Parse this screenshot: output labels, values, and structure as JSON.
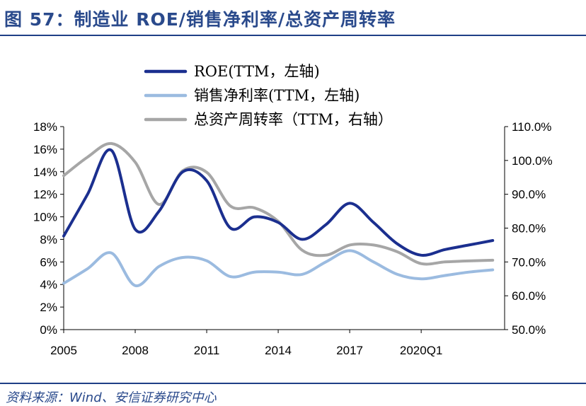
{
  "figure": {
    "title": "图 57：制造业 ROE/销售净利率/总资产周转率",
    "source": "资料来源：Wind、安信证券研究中心"
  },
  "colors": {
    "title": "#2a4a8c",
    "roe": "#1b2f8f",
    "margin": "#9bbbe0",
    "turnover": "#a6a6a6"
  },
  "chart_data": {
    "type": "line",
    "x_tick_labels": [
      "2005",
      "2008",
      "2011",
      "2014",
      "2017",
      "2020Q1"
    ],
    "x_range": [
      2005,
      2023.5
    ],
    "legend_position": "top",
    "grid": false,
    "y_left": {
      "ticks": [
        "0%",
        "2%",
        "4%",
        "6%",
        "8%",
        "10%",
        "12%",
        "14%",
        "16%",
        "18%"
      ],
      "range": [
        0,
        18
      ]
    },
    "y_right": {
      "ticks": [
        "50.0%",
        "60.0%",
        "70.0%",
        "80.0%",
        "90.0%",
        "100.0%",
        "110.0%"
      ],
      "range": [
        50,
        110
      ]
    },
    "series": [
      {
        "name": "ROE(TTM，左轴)",
        "axis": "left",
        "color_key": "roe",
        "points": [
          [
            2005,
            8.3
          ],
          [
            2006,
            12
          ],
          [
            2007,
            15.9
          ],
          [
            2008,
            8.9
          ],
          [
            2009,
            10.5
          ],
          [
            2010,
            14
          ],
          [
            2011,
            13.2
          ],
          [
            2012,
            9
          ],
          [
            2013,
            10
          ],
          [
            2014,
            9.5
          ],
          [
            2015,
            8
          ],
          [
            2016,
            9.3
          ],
          [
            2017,
            11.2
          ],
          [
            2018,
            9.5
          ],
          [
            2019,
            7.6
          ],
          [
            2020,
            6.6
          ],
          [
            2021,
            7.1
          ],
          [
            2022,
            7.5
          ],
          [
            2023,
            7.9
          ]
        ]
      },
      {
        "name": "销售净利率(TTM，左轴)",
        "axis": "left",
        "color_key": "margin",
        "points": [
          [
            2005,
            4.1
          ],
          [
            2006,
            5.4
          ],
          [
            2007,
            6.8
          ],
          [
            2008,
            3.9
          ],
          [
            2009,
            5.6
          ],
          [
            2010,
            6.4
          ],
          [
            2011,
            6.1
          ],
          [
            2012,
            4.7
          ],
          [
            2013,
            5.1
          ],
          [
            2014,
            5.1
          ],
          [
            2015,
            4.9
          ],
          [
            2016,
            6.0
          ],
          [
            2017,
            7.0
          ],
          [
            2018,
            6.0
          ],
          [
            2019,
            4.9
          ],
          [
            2020,
            4.5
          ],
          [
            2021,
            4.8
          ],
          [
            2022,
            5.1
          ],
          [
            2023,
            5.3
          ]
        ]
      },
      {
        "name": "总资产周转率（TTM，右轴）",
        "axis": "right",
        "color_key": "turnover",
        "points": [
          [
            2005,
            95.5
          ],
          [
            2006,
            101
          ],
          [
            2007,
            105
          ],
          [
            2008,
            99.5
          ],
          [
            2009,
            87
          ],
          [
            2010,
            97
          ],
          [
            2011,
            96.5
          ],
          [
            2012,
            86.5
          ],
          [
            2013,
            86
          ],
          [
            2014,
            82
          ],
          [
            2015,
            73.5
          ],
          [
            2016,
            72
          ],
          [
            2017,
            75
          ],
          [
            2018,
            75
          ],
          [
            2019,
            73
          ],
          [
            2020,
            69.5
          ],
          [
            2021,
            70
          ],
          [
            2022,
            70.3
          ],
          [
            2023,
            70.5
          ]
        ]
      }
    ]
  }
}
